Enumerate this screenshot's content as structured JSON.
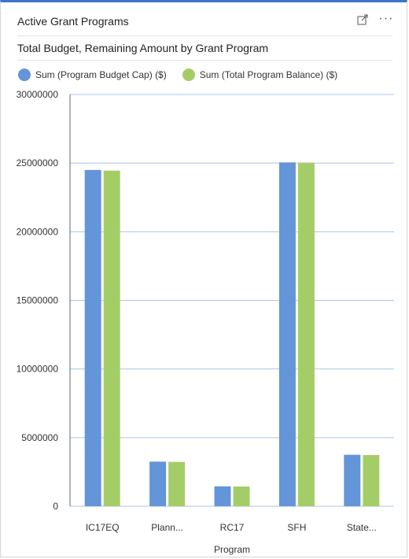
{
  "card": {
    "title": "Active Grant Programs",
    "expand_icon": "expand-icon",
    "more_icon": "more-options-icon",
    "more_label": "···"
  },
  "chart_data": {
    "type": "bar",
    "title": "Total Budget, Remaining Amount by Grant Program",
    "xlabel": "Program",
    "ylabel": "",
    "ylim": [
      0,
      30000000
    ],
    "yticks": [
      "0",
      "5000000",
      "10000000",
      "15000000",
      "20000000",
      "25000000",
      "30000000"
    ],
    "grid": true,
    "legend_position": "top-left",
    "categories": [
      "IC17EQ",
      "Plann...",
      "RC17",
      "SFH",
      "State..."
    ],
    "series": [
      {
        "name": "Sum (Program Budget Cap) ($)",
        "color": "#6495d8",
        "values": [
          24500000,
          3250000,
          1450000,
          25050000,
          3750000
        ]
      },
      {
        "name": "Sum (Total Program Balance) ($)",
        "color": "#a5cd67",
        "values": [
          24450000,
          3230000,
          1440000,
          25030000,
          3730000
        ]
      }
    ]
  }
}
